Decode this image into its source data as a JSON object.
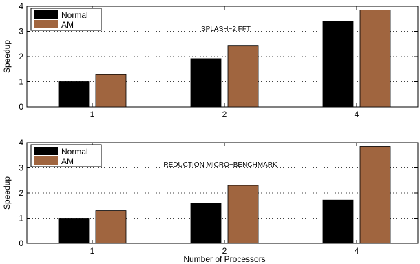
{
  "chart_data": [
    {
      "type": "bar",
      "title": "SPLASH−2 FFT",
      "xlabel": "",
      "ylabel": "Speedup",
      "ylim": [
        0,
        4
      ],
      "yticks": [
        0,
        1,
        2,
        3,
        4
      ],
      "categories": [
        "1",
        "2",
        "4"
      ],
      "series": [
        {
          "name": "Normal",
          "color": "#000000",
          "values": [
            1.0,
            1.92,
            3.4
          ]
        },
        {
          "name": "AM",
          "color": "#a0653f",
          "values": [
            1.28,
            2.42,
            3.85
          ]
        }
      ],
      "grid": "dotted horizontal",
      "legend_position": "top-left"
    },
    {
      "type": "bar",
      "title": "REDUCTION MICRO−BENCHMARK",
      "xlabel": "Number of Processors",
      "ylabel": "Speedup",
      "ylim": [
        0,
        4
      ],
      "yticks": [
        0,
        1,
        2,
        3,
        4
      ],
      "categories": [
        "1",
        "2",
        "4"
      ],
      "series": [
        {
          "name": "Normal",
          "color": "#000000",
          "values": [
            1.0,
            1.58,
            1.72
          ]
        },
        {
          "name": "AM",
          "color": "#a0653f",
          "values": [
            1.3,
            2.3,
            3.85
          ]
        }
      ],
      "grid": "dotted horizontal",
      "legend_position": "top-left"
    }
  ]
}
